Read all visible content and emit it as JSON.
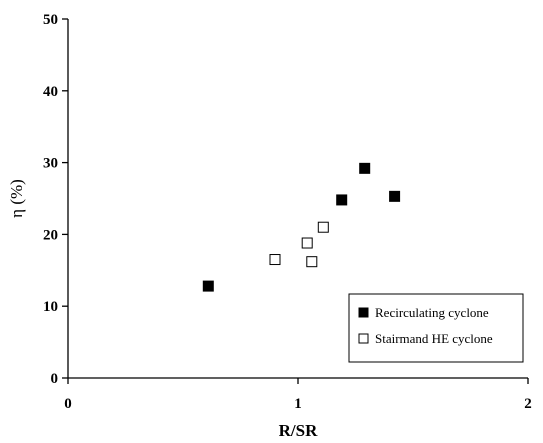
{
  "chart_data": {
    "type": "scatter",
    "title": "",
    "xlabel": "R/SR",
    "ylabel": "η (%)",
    "xlim": [
      0,
      2
    ],
    "ylim": [
      0,
      50
    ],
    "x_ticks": [
      "0",
      "1",
      "2"
    ],
    "y_ticks": [
      "0",
      "10",
      "20",
      "30",
      "40",
      "50"
    ],
    "grid": false,
    "legend_position": "bottom-right",
    "series": [
      {
        "name": "Recirculating cyclone",
        "marker": "filled-square",
        "color": "#000000",
        "points": [
          {
            "x": 0.61,
            "y": 12.8
          },
          {
            "x": 1.19,
            "y": 24.8
          },
          {
            "x": 1.29,
            "y": 29.2
          },
          {
            "x": 1.42,
            "y": 25.3
          }
        ]
      },
      {
        "name": "Stairmand HE cyclone",
        "marker": "open-square",
        "color": "#000000",
        "points": [
          {
            "x": 0.9,
            "y": 16.5
          },
          {
            "x": 1.04,
            "y": 18.8
          },
          {
            "x": 1.06,
            "y": 16.2
          },
          {
            "x": 1.11,
            "y": 21.0
          }
        ]
      }
    ]
  }
}
